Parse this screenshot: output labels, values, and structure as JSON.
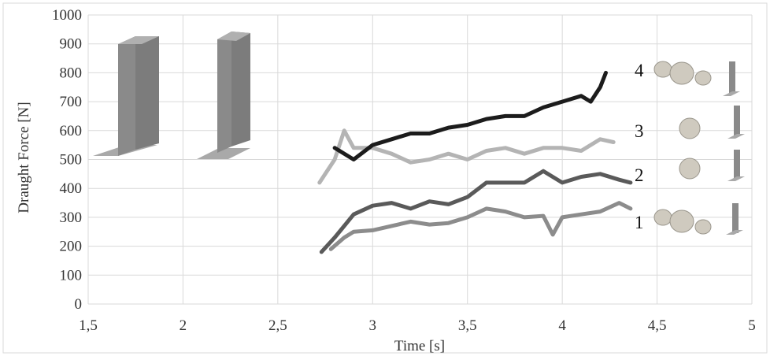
{
  "chart_data": {
    "type": "line",
    "title": "",
    "xlabel": "Time [s]",
    "ylabel": "Draught Force [N]",
    "xlim": [
      1.5,
      5
    ],
    "ylim": [
      0,
      1000
    ],
    "x_ticks": [
      "1,5",
      "2",
      "2,5",
      "3",
      "3,5",
      "4",
      "4,5",
      "5"
    ],
    "y_ticks": [
      "0",
      "100",
      "200",
      "300",
      "400",
      "500",
      "600",
      "700",
      "800",
      "900",
      "1000"
    ],
    "grid": true,
    "legend": "none",
    "series": [
      {
        "name": "1",
        "color": "#8c8c8c",
        "x": [
          2.78,
          2.85,
          2.9,
          3.0,
          3.1,
          3.2,
          3.3,
          3.4,
          3.5,
          3.6,
          3.7,
          3.8,
          3.9,
          3.95,
          4.0,
          4.1,
          4.2,
          4.3,
          4.36
        ],
        "y": [
          190,
          230,
          250,
          255,
          270,
          285,
          275,
          280,
          300,
          330,
          320,
          300,
          305,
          240,
          300,
          310,
          320,
          350,
          330
        ]
      },
      {
        "name": "2",
        "color": "#5a5a5a",
        "x": [
          2.73,
          2.8,
          2.85,
          2.9,
          3.0,
          3.1,
          3.2,
          3.3,
          3.4,
          3.5,
          3.6,
          3.7,
          3.8,
          3.9,
          4.0,
          4.1,
          4.2,
          4.3,
          4.36
        ],
        "y": [
          180,
          230,
          270,
          310,
          340,
          350,
          330,
          355,
          345,
          370,
          420,
          420,
          420,
          460,
          420,
          440,
          450,
          430,
          420
        ]
      },
      {
        "name": "3",
        "color": "#b4b4b4",
        "x": [
          2.72,
          2.8,
          2.85,
          2.9,
          3.0,
          3.1,
          3.2,
          3.3,
          3.4,
          3.5,
          3.6,
          3.7,
          3.8,
          3.9,
          4.0,
          4.1,
          4.2,
          4.27
        ],
        "y": [
          420,
          500,
          600,
          540,
          540,
          520,
          490,
          500,
          520,
          500,
          530,
          540,
          520,
          540,
          540,
          530,
          570,
          560
        ]
      },
      {
        "name": "4",
        "color": "#1c1c1c",
        "x": [
          2.8,
          2.9,
          3.0,
          3.1,
          3.2,
          3.3,
          3.4,
          3.5,
          3.6,
          3.7,
          3.8,
          3.9,
          4.0,
          4.1,
          4.15,
          4.2,
          4.23
        ],
        "y": [
          540,
          500,
          550,
          570,
          590,
          590,
          610,
          620,
          640,
          650,
          650,
          680,
          700,
          720,
          700,
          750,
          800
        ]
      }
    ],
    "curve_labels": [
      "1",
      "2",
      "3",
      "4"
    ]
  }
}
